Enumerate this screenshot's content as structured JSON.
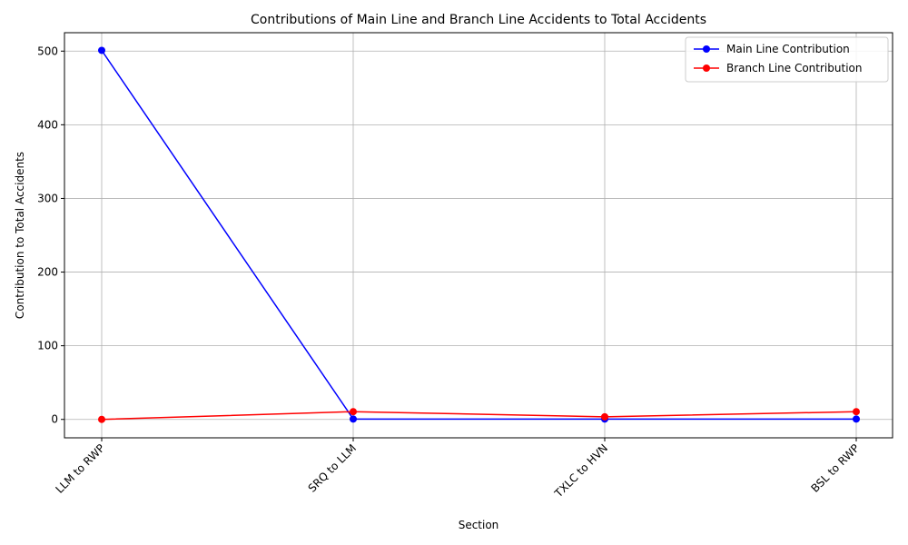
{
  "chart_data": {
    "type": "line",
    "title": "Contributions of Main Line and Branch Line Accidents to Total Accidents",
    "xlabel": "Section",
    "ylabel": "Contribution to Total Accidents",
    "categories": [
      "LLM  to RWP",
      "SRQ to LLM",
      "TXLC to HVN",
      "BSL to RWP"
    ],
    "ylim": [
      -25,
      525
    ],
    "yticks": [
      0,
      100,
      200,
      300,
      400,
      500
    ],
    "grid": true,
    "legend_position": "top-right",
    "series": [
      {
        "name": "Main Line Contribution",
        "color": "#0000ff",
        "values": [
          501,
          0.5,
          0.5,
          0.5
        ]
      },
      {
        "name": "Branch Line Contribution",
        "color": "#ff0000",
        "values": [
          0,
          10.5,
          3.5,
          10.5
        ]
      }
    ]
  }
}
